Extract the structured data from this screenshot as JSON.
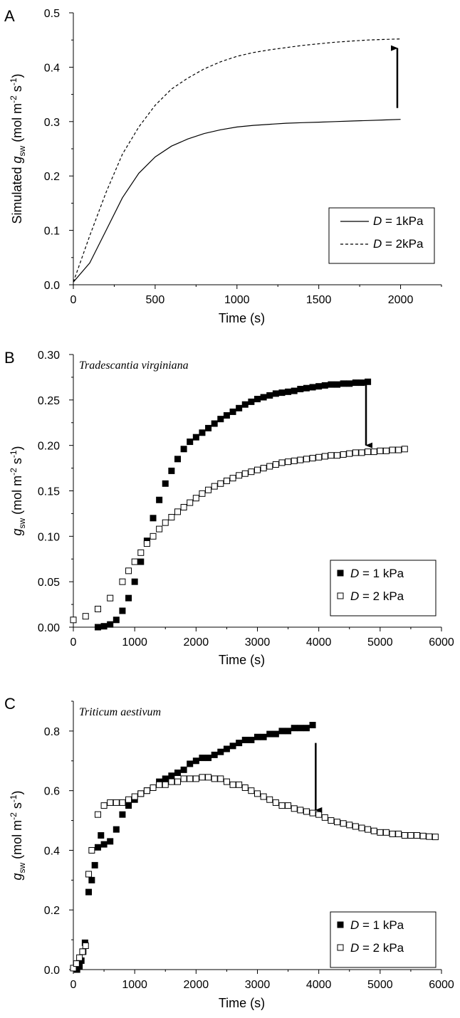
{
  "chart_data": [
    {
      "panel": "A",
      "type": "line",
      "title": "",
      "xlabel": "Time (s)",
      "ylabel": {
        "pre": "Simulated ",
        "var": "g",
        "sub": "sw",
        "unit": " (mol m",
        "exp1": "-2",
        "mid": " s",
        "exp2": "-1",
        "end": ")"
      },
      "xlim": [
        0,
        2250
      ],
      "ylim": [
        0,
        0.5
      ],
      "xticks": [
        0,
        500,
        1000,
        1500,
        2000
      ],
      "yticks": [
        0.0,
        0.1,
        0.2,
        0.3,
        0.4,
        0.5
      ],
      "xtick_labels": [
        "0",
        "500",
        "1000",
        "1500",
        "2000"
      ],
      "ytick_labels": [
        "0.0",
        "0.1",
        "0.2",
        "0.3",
        "0.4",
        "0.5"
      ],
      "grid": false,
      "legend_position": "bottom-right",
      "series": [
        {
          "name": "D = 1kPa",
          "legend_var": "D",
          "legend_rest": " = 1kPa",
          "style": "solid",
          "x": [
            0,
            100,
            200,
            300,
            400,
            500,
            600,
            700,
            800,
            900,
            1000,
            1100,
            1200,
            1300,
            1400,
            1500,
            1600,
            1700,
            1800,
            1900,
            2000
          ],
          "y": [
            0.005,
            0.04,
            0.1,
            0.16,
            0.205,
            0.235,
            0.255,
            0.268,
            0.278,
            0.285,
            0.29,
            0.293,
            0.295,
            0.297,
            0.298,
            0.299,
            0.3,
            0.301,
            0.302,
            0.303,
            0.304
          ]
        },
        {
          "name": "D = 2kPa",
          "legend_var": "D",
          "legend_rest": " = 2kPa",
          "style": "dashed",
          "x": [
            0,
            100,
            200,
            300,
            400,
            500,
            600,
            700,
            800,
            900,
            1000,
            1100,
            1200,
            1300,
            1400,
            1500,
            1600,
            1700,
            1800,
            1900,
            2000
          ],
          "y": [
            0.005,
            0.09,
            0.17,
            0.24,
            0.29,
            0.33,
            0.36,
            0.38,
            0.397,
            0.41,
            0.42,
            0.427,
            0.432,
            0.436,
            0.44,
            0.443,
            0.446,
            0.448,
            0.45,
            0.451,
            0.452
          ]
        }
      ],
      "arrow": {
        "x": 1980,
        "y_from": 0.325,
        "y_to": 0.435
      }
    },
    {
      "panel": "B",
      "type": "scatter",
      "annotation": "Tradescantia virginiana",
      "xlabel": "Time  (s)",
      "ylabel": {
        "var": "g",
        "sub": "sw",
        "unit": " (mol m",
        "exp1": "-2",
        "mid": " s",
        "exp2": "-1",
        "end": ")"
      },
      "xlim": [
        0,
        6000
      ],
      "ylim": [
        0,
        0.3
      ],
      "xticks": [
        0,
        1000,
        2000,
        3000,
        4000,
        5000,
        6000
      ],
      "yticks": [
        0.0,
        0.05,
        0.1,
        0.15,
        0.2,
        0.25,
        0.3
      ],
      "xtick_labels": [
        "0",
        "1000",
        "2000",
        "3000",
        "4000",
        "5000",
        "6000"
      ],
      "ytick_labels": [
        "0.00",
        "0.05",
        "0.10",
        "0.15",
        "0.20",
        "0.25",
        "0.30"
      ],
      "grid": false,
      "legend_position": "bottom-right",
      "series": [
        {
          "name": "D = 1 kPa",
          "legend_var": "D",
          "legend_rest": " = 1 kPa",
          "marker": "filled-square",
          "x": [
            400,
            500,
            600,
            700,
            800,
            900,
            1000,
            1100,
            1200,
            1300,
            1400,
            1500,
            1600,
            1700,
            1800,
            1900,
            2000,
            2100,
            2200,
            2300,
            2400,
            2500,
            2600,
            2700,
            2800,
            2900,
            3000,
            3100,
            3200,
            3300,
            3400,
            3500,
            3600,
            3700,
            3800,
            3900,
            4000,
            4100,
            4200,
            4300,
            4400,
            4500,
            4600,
            4700,
            4800
          ],
          "y": [
            0.0,
            0.001,
            0.003,
            0.008,
            0.018,
            0.032,
            0.05,
            0.072,
            0.095,
            0.12,
            0.14,
            0.158,
            0.172,
            0.185,
            0.196,
            0.204,
            0.209,
            0.214,
            0.219,
            0.224,
            0.229,
            0.233,
            0.237,
            0.241,
            0.245,
            0.248,
            0.251,
            0.253,
            0.255,
            0.257,
            0.258,
            0.259,
            0.26,
            0.262,
            0.263,
            0.264,
            0.265,
            0.266,
            0.267,
            0.267,
            0.268,
            0.268,
            0.269,
            0.269,
            0.27
          ]
        },
        {
          "name": "D = 2 kPa",
          "legend_var": "D",
          "legend_rest": " = 2 kPa",
          "marker": "open-square",
          "x": [
            0,
            200,
            400,
            600,
            800,
            900,
            1000,
            1100,
            1200,
            1300,
            1400,
            1500,
            1600,
            1700,
            1800,
            1900,
            2000,
            2100,
            2200,
            2300,
            2400,
            2500,
            2600,
            2700,
            2800,
            2900,
            3000,
            3100,
            3200,
            3300,
            3400,
            3500,
            3600,
            3700,
            3800,
            3900,
            4000,
            4100,
            4200,
            4300,
            4400,
            4500,
            4600,
            4700,
            4800,
            4900,
            5000,
            5100,
            5200,
            5300,
            5400
          ],
          "y": [
            0.008,
            0.012,
            0.02,
            0.032,
            0.05,
            0.062,
            0.072,
            0.082,
            0.092,
            0.1,
            0.108,
            0.115,
            0.121,
            0.127,
            0.132,
            0.137,
            0.142,
            0.147,
            0.151,
            0.155,
            0.158,
            0.161,
            0.164,
            0.167,
            0.169,
            0.171,
            0.173,
            0.175,
            0.177,
            0.179,
            0.181,
            0.182,
            0.183,
            0.184,
            0.185,
            0.186,
            0.187,
            0.188,
            0.189,
            0.189,
            0.19,
            0.191,
            0.192,
            0.192,
            0.193,
            0.193,
            0.194,
            0.194,
            0.195,
            0.195,
            0.196
          ]
        }
      ],
      "arrow": {
        "x": 4770,
        "y_from": 0.267,
        "y_to": 0.2
      }
    },
    {
      "panel": "C",
      "type": "scatter",
      "annotation": "Triticum aestivum",
      "xlabel": "Time  (s)",
      "ylabel": {
        "var": "g",
        "sub": "sw",
        "unit": " (mol m",
        "exp1": "-2",
        "mid": " s",
        "exp2": "-1",
        "end": ")"
      },
      "xlim": [
        0,
        6000
      ],
      "ylim": [
        0,
        0.9
      ],
      "xticks": [
        0,
        1000,
        2000,
        3000,
        4000,
        5000,
        6000
      ],
      "yticks": [
        0.0,
        0.2,
        0.4,
        0.6,
        0.8
      ],
      "xtick_labels": [
        "0",
        "1000",
        "2000",
        "3000",
        "4000",
        "5000",
        "6000"
      ],
      "ytick_labels": [
        "0.0",
        "0.2",
        "0.4",
        "0.6",
        "0.8"
      ],
      "grid": false,
      "legend_position": "bottom-right",
      "series": [
        {
          "name": "D = 1 kPa",
          "legend_var": "D",
          "legend_rest": " = 1 kPa",
          "marker": "filled-square",
          "x": [
            60,
            100,
            130,
            160,
            190,
            250,
            300,
            350,
            400,
            450,
            500,
            600,
            700,
            800,
            900,
            1000,
            1100,
            1200,
            1300,
            1400,
            1500,
            1600,
            1700,
            1800,
            1900,
            2000,
            2100,
            2200,
            2300,
            2400,
            2500,
            2600,
            2700,
            2800,
            2900,
            3000,
            3100,
            3200,
            3300,
            3400,
            3500,
            3600,
            3700,
            3800,
            3900
          ],
          "y": [
            0.0,
            0.01,
            0.03,
            0.06,
            0.09,
            0.26,
            0.3,
            0.35,
            0.41,
            0.45,
            0.42,
            0.43,
            0.47,
            0.52,
            0.55,
            0.57,
            0.59,
            0.6,
            0.61,
            0.63,
            0.64,
            0.65,
            0.66,
            0.67,
            0.69,
            0.7,
            0.71,
            0.71,
            0.72,
            0.73,
            0.74,
            0.75,
            0.76,
            0.77,
            0.77,
            0.78,
            0.78,
            0.79,
            0.79,
            0.8,
            0.8,
            0.81,
            0.81,
            0.81,
            0.82
          ]
        },
        {
          "name": "D = 2 kPa",
          "legend_var": "D",
          "legend_rest": " = 2 kPa",
          "marker": "open-square",
          "x": [
            0,
            50,
            100,
            150,
            200,
            250,
            300,
            400,
            500,
            600,
            700,
            800,
            900,
            1000,
            1100,
            1200,
            1300,
            1400,
            1500,
            1600,
            1700,
            1800,
            1900,
            2000,
            2100,
            2200,
            2300,
            2400,
            2500,
            2600,
            2700,
            2800,
            2900,
            3000,
            3100,
            3200,
            3300,
            3400,
            3500,
            3600,
            3700,
            3800,
            3900,
            4000,
            4100,
            4200,
            4300,
            4400,
            4500,
            4600,
            4700,
            4800,
            4900,
            5000,
            5100,
            5200,
            5300,
            5400,
            5500,
            5600,
            5700,
            5800,
            5900
          ],
          "y": [
            0.005,
            0.02,
            0.04,
            0.06,
            0.08,
            0.32,
            0.4,
            0.52,
            0.55,
            0.56,
            0.56,
            0.56,
            0.57,
            0.58,
            0.59,
            0.6,
            0.61,
            0.62,
            0.62,
            0.63,
            0.63,
            0.64,
            0.64,
            0.64,
            0.645,
            0.645,
            0.64,
            0.64,
            0.63,
            0.62,
            0.62,
            0.61,
            0.6,
            0.59,
            0.58,
            0.57,
            0.56,
            0.55,
            0.55,
            0.54,
            0.535,
            0.53,
            0.525,
            0.52,
            0.51,
            0.5,
            0.495,
            0.49,
            0.485,
            0.48,
            0.475,
            0.47,
            0.465,
            0.46,
            0.46,
            0.455,
            0.455,
            0.45,
            0.45,
            0.45,
            0.448,
            0.446,
            0.445
          ]
        }
      ],
      "arrow": {
        "x": 3950,
        "y_from": 0.76,
        "y_to": 0.535
      }
    }
  ]
}
